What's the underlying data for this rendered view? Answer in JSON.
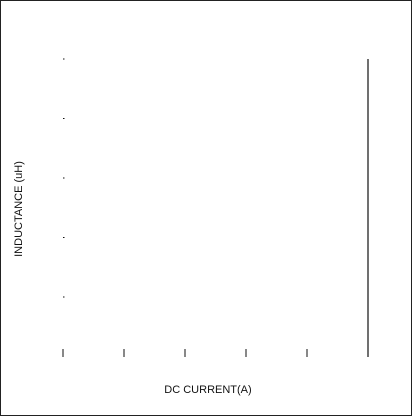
{
  "chart_data": {
    "type": "line",
    "title": "",
    "xlabel": "DC CURRENT(A)",
    "ylabel": "INDUCTANCE (uH)",
    "x_tick_labels": [],
    "y_tick_labels": [],
    "series": [],
    "grid": false,
    "legend": "none",
    "x_tick_count": 6,
    "y_tick_count": 5
  },
  "colors": {
    "axis": "#111111",
    "background": "#ffffff"
  }
}
